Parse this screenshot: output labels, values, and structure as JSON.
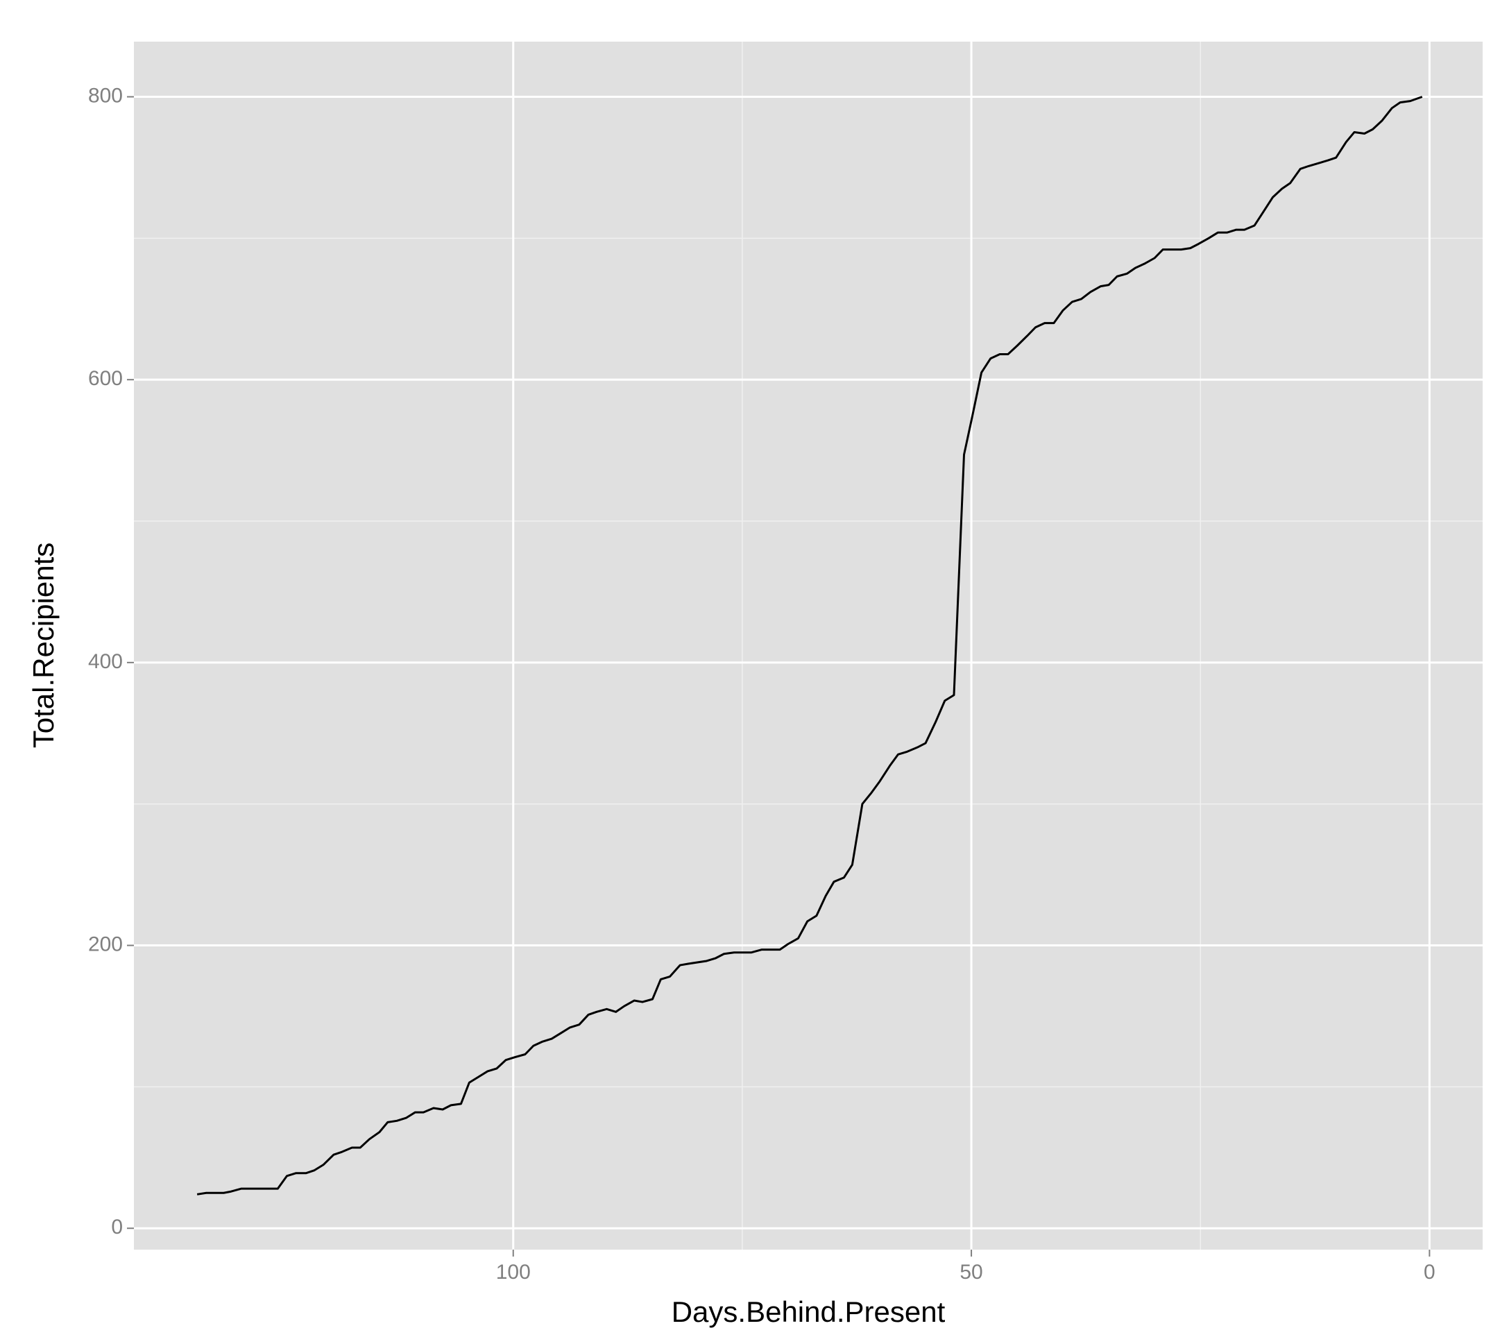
{
  "chart_data": {
    "type": "line",
    "x_label": "Days.Behind.Present",
    "y_label": "Total.Recipients",
    "xlim": [
      141.4,
      -5.8
    ],
    "ylim": [
      -15.1,
      839
    ],
    "xticks": [
      100,
      50,
      0
    ],
    "yticks": [
      0,
      200,
      400,
      600,
      800
    ],
    "grid": true,
    "background": "#e0e0e0",
    "series": [
      {
        "name": "Total.Recipients",
        "color": "#000000",
        "x": [
          134.5,
          133.5,
          131.6,
          130.8,
          129.7,
          125.7,
          124.7,
          123.7,
          122.6,
          121.7,
          120.7,
          119.6,
          118.7,
          117.6,
          116.7,
          115.7,
          114.6,
          113.7,
          112.7,
          111.7,
          110.7,
          109.8,
          108.7,
          107.7,
          106.8,
          105.7,
          104.8,
          103.8,
          102.8,
          101.8,
          100.8,
          99.8,
          98.7,
          97.8,
          96.8,
          95.8,
          94.8,
          93.8,
          92.8,
          91.8,
          90.9,
          89.8,
          88.8,
          87.9,
          86.8,
          85.9,
          84.8,
          83.9,
          82.9,
          81.8,
          80.9,
          78.9,
          77.9,
          77.0,
          75.9,
          74.0,
          72.9,
          70.9,
          70.0,
          68.9,
          67.9,
          66.9,
          65.9,
          65.0,
          63.9,
          63.0,
          61.9,
          60.9,
          60.0,
          58.9,
          58.0,
          57.0,
          55.9,
          55.0,
          53.9,
          52.9,
          51.9,
          50.8,
          49.9,
          48.9,
          47.9,
          46.9,
          46.0,
          45.0,
          43.9,
          43.0,
          42.0,
          41.0,
          40.0,
          39.0,
          38.0,
          37.0,
          35.9,
          35.0,
          34.1,
          33.0,
          32.1,
          31.1,
          30.0,
          29.1,
          28.1,
          27.1,
          26.1,
          25.2,
          24.1,
          23.1,
          22.1,
          21.1,
          20.2,
          19.1,
          18.2,
          17.1,
          16.1,
          15.2,
          14.1,
          13.2,
          11.1,
          10.2,
          9.1,
          8.2,
          7.1,
          6.2,
          5.2,
          4.1,
          3.2,
          2.1,
          0.8
        ],
        "values": [
          24,
          25,
          25,
          26,
          28,
          28,
          37,
          39,
          39,
          41,
          45,
          52,
          54,
          57,
          57,
          63,
          68,
          75,
          76,
          78,
          82,
          82,
          85,
          84,
          87,
          88,
          103,
          107,
          111,
          113,
          119,
          121,
          123,
          129,
          132,
          134,
          138,
          142,
          144,
          151,
          153,
          155,
          153,
          157,
          161,
          160,
          162,
          176,
          178,
          186,
          187,
          189,
          191,
          194,
          195,
          195,
          197,
          197,
          201,
          205,
          217,
          221,
          235,
          245,
          248,
          257,
          300,
          308,
          316,
          327,
          335,
          337,
          340,
          343,
          358,
          373,
          377,
          547,
          574,
          605,
          615,
          618,
          618,
          624,
          631,
          637,
          640,
          640,
          649,
          655,
          657,
          662,
          666,
          667,
          673,
          675,
          679,
          682,
          686,
          692,
          692,
          692,
          693,
          696,
          700,
          704,
          704,
          706,
          706,
          709,
          718,
          729,
          735,
          739,
          749,
          751,
          755,
          757,
          768,
          775,
          774,
          777,
          783,
          792,
          796,
          797,
          800
        ]
      }
    ]
  }
}
